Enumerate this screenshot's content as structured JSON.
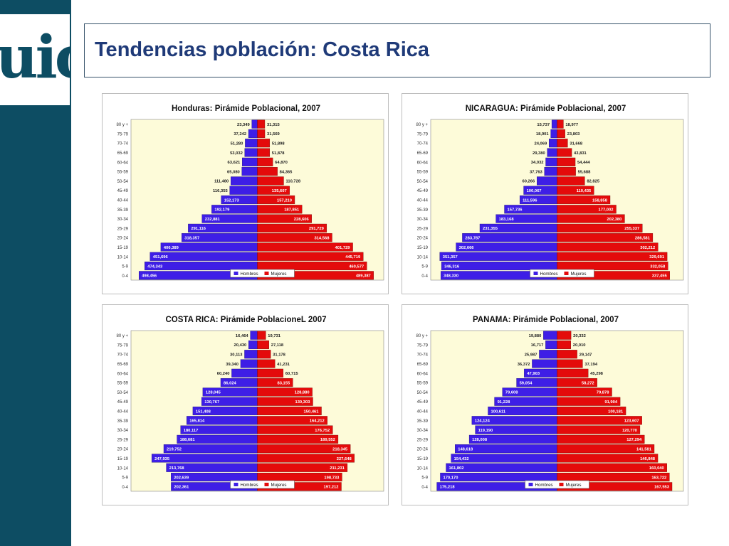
{
  "slide": {
    "title": "Tendencias población: Costa Rica",
    "logo_text": "uic"
  },
  "colors": {
    "band": "#0d4d63",
    "title": "#1f3a78",
    "male": "#3e1ee6",
    "female": "#e40b0b",
    "plot_bg": "#fdfbd9",
    "grid": "#888888"
  },
  "chart_data": [
    {
      "type": "bar",
      "orientation": "population-pyramid",
      "title": "Honduras:  Pirámide Poblacional, 2007",
      "legend": [
        "Hombres",
        "Mujeres"
      ],
      "legend_position": "bottom-right",
      "categories": [
        "80 y +",
        "75-79",
        "70-74",
        "65-69",
        "60-64",
        "55-59",
        "50-54",
        "45-49",
        "40-44",
        "35-39",
        "30-34",
        "25-29",
        "20-24",
        "15-19",
        "10-14",
        "5-9",
        "0-4"
      ],
      "series": [
        {
          "name": "Hombres",
          "labels": [
            "23,349",
            "37,242",
            "51,280",
            "53,032",
            "63,621",
            "65,080",
            "111,480",
            "116,355",
            "152,173",
            "192,179",
            "232,881",
            "291,116",
            "318,357",
            "406,389",
            "451,696",
            "474,343",
            "498,456"
          ],
          "values": [
            23349,
            37242,
            51280,
            53032,
            63621,
            65080,
            111480,
            116355,
            152173,
            192179,
            232881,
            291116,
            318357,
            406389,
            451696,
            474343,
            498456
          ]
        },
        {
          "name": "Mujeres",
          "labels": [
            "31,315",
            "31,569",
            "51,898",
            "51,878",
            "64,870",
            "84,365",
            "110,728",
            "135,607",
            "157,210",
            "187,851",
            "228,606",
            "291,729",
            "314,568",
            "401,729",
            "445,719",
            "460,577",
            "489,387"
          ],
          "values": [
            31315,
            31569,
            51898,
            51878,
            64870,
            84365,
            110728,
            135607,
            157210,
            187851,
            228606,
            291729,
            314568,
            401729,
            445719,
            460577,
            489387
          ]
        }
      ],
      "xlim": [
        -520000,
        520000
      ]
    },
    {
      "type": "bar",
      "orientation": "population-pyramid",
      "title": "NICARAGUA:  Pirámide Poblacional, 2007",
      "legend": [
        "Hombres",
        "Mujeres"
      ],
      "legend_position": "bottom-right",
      "categories": [
        "80 y +",
        "75-79",
        "70-74",
        "65-69",
        "60-64",
        "55-59",
        "50-54",
        "45-49",
        "40-44",
        "35-39",
        "30-34",
        "25-29",
        "20-24",
        "15-19",
        "10-14",
        "5-9",
        "0-4"
      ],
      "series": [
        {
          "name": "Hombres",
          "labels": [
            "15,737",
            "18,901",
            "24,069",
            "29,380",
            "34,032",
            "37,763",
            "60,266",
            "100,067",
            "111,596",
            "157,736",
            "183,168",
            "231,355",
            "283,787",
            "302,666",
            "351,357",
            "346,316",
            "348,330"
          ],
          "values": [
            15737,
            18901,
            24069,
            29380,
            34032,
            37763,
            60266,
            100067,
            111596,
            157736,
            183168,
            231355,
            283787,
            302666,
            351357,
            346316,
            348330
          ]
        },
        {
          "name": "Mujeres",
          "labels": [
            "18,977",
            "23,803",
            "31,668",
            "43,831",
            "54,444",
            "55,688",
            "82,825",
            "110,435",
            "158,858",
            "177,002",
            "202,380",
            "255,337",
            "286,581",
            "302,212",
            "329,691",
            "332,058",
            "337,455"
          ],
          "values": [
            18977,
            23803,
            31668,
            43831,
            54444,
            55688,
            82825,
            110435,
            158858,
            177002,
            202380,
            255337,
            286581,
            302212,
            329691,
            332058,
            337455
          ]
        }
      ],
      "xlim": [
        -370000,
        370000
      ]
    },
    {
      "type": "bar",
      "orientation": "population-pyramid",
      "title": "COSTA RICA:  Pirámide PoblacioneL 2007",
      "legend": [
        "Hombres",
        "Mujeres"
      ],
      "legend_position": "bottom-right",
      "categories": [
        "80 y +",
        "75-79",
        "70-74",
        "65-69",
        "60-64",
        "55-59",
        "50-54",
        "45-49",
        "40-44",
        "35-39",
        "30-34",
        "25-29",
        "20-24",
        "15-19",
        "10-14",
        "5-9",
        "0-4"
      ],
      "series": [
        {
          "name": "Hombres",
          "labels": [
            "16,464",
            "20,430",
            "30,113",
            "39,340",
            "60,240",
            "86,024",
            "128,045",
            "130,767",
            "151,408",
            "165,814",
            "180,117",
            "188,681",
            "219,752",
            "247,935",
            "213,768",
            "202,639",
            "202,361"
          ],
          "values": [
            16464,
            20430,
            30113,
            39340,
            60240,
            86024,
            128045,
            130767,
            151408,
            165814,
            180117,
            188681,
            219752,
            247935,
            213768,
            202639,
            202361
          ]
        },
        {
          "name": "Mujeres",
          "labels": [
            "19,731",
            "27,118",
            "31,178",
            "41,231",
            "60,715",
            "83,155",
            "128,880",
            "130,303",
            "150,461",
            "164,212",
            "176,752",
            "189,552",
            "218,345",
            "227,648",
            "211,231",
            "198,733",
            "197,212"
          ],
          "values": [
            19731,
            27118,
            31178,
            41231,
            60715,
            83155,
            128880,
            130303,
            150461,
            164212,
            176752,
            189552,
            218345,
            227648,
            211231,
            198733,
            197212
          ]
        }
      ],
      "xlim": [
        -290000,
        290000
      ]
    },
    {
      "type": "bar",
      "orientation": "population-pyramid",
      "title": "PANAMA:  Pirámide Poblacional, 2007",
      "legend": [
        "Hombres",
        "Mujeres"
      ],
      "legend_position": "bottom-center",
      "categories": [
        "80 y +",
        "75-79",
        "70-74",
        "65-69",
        "60-64",
        "55-59",
        "50-54",
        "45-49",
        "40-44",
        "35-39",
        "30-34",
        "25-29",
        "20-24",
        "15-19",
        "10-14",
        "5-9",
        "0-4"
      ],
      "series": [
        {
          "name": "Hombres",
          "labels": [
            "19,880",
            "16,717",
            "25,987",
            "36,372",
            "47,903",
            "59,054",
            "79,608",
            "91,228",
            "100,611",
            "124,124",
            "119,190",
            "128,008",
            "148,618",
            "154,432",
            "161,802",
            "170,170",
            "175,218"
          ],
          "values": [
            19880,
            16717,
            25987,
            36372,
            47903,
            59054,
            79608,
            91228,
            100611,
            124124,
            119190,
            128008,
            148618,
            154432,
            161802,
            170170,
            175218
          ]
        },
        {
          "name": "Mujeres",
          "labels": [
            "20,332",
            "20,010",
            "29,147",
            "37,194",
            "45,298",
            "58,272",
            "79,878",
            "91,904",
            "100,181",
            "123,607",
            "120,770",
            "127,294",
            "141,581",
            "146,848",
            "160,040",
            "163,722",
            "167,553"
          ],
          "values": [
            20332,
            20010,
            29147,
            37194,
            45298,
            58272,
            79878,
            91904,
            100181,
            123607,
            120770,
            127294,
            141581,
            146848,
            160040,
            163722,
            167553
          ]
        }
      ],
      "xlim": [
        -180000,
        180000
      ]
    }
  ]
}
